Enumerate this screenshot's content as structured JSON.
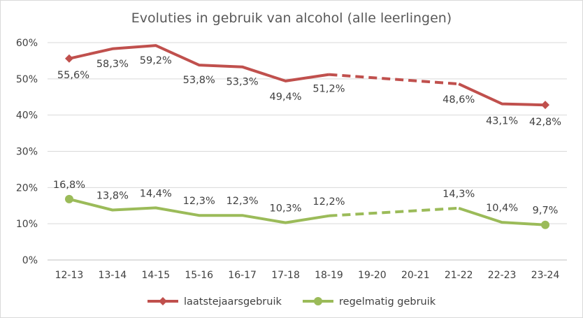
{
  "chart_data": {
    "type": "line",
    "title": "Evoluties in gebruik van alcohol (alle leerlingen)",
    "xlabel": "",
    "ylabel": "",
    "categories": [
      "12-13",
      "13-14",
      "14-15",
      "15-16",
      "16-17",
      "17-18",
      "18-19",
      "19-20",
      "20-21",
      "21-22",
      "22-23",
      "23-24"
    ],
    "ylim": [
      0,
      60
    ],
    "yticks": [
      "0%",
      "10%",
      "20%",
      "30%",
      "40%",
      "50%",
      "60%"
    ],
    "ytick_values": [
      0,
      10,
      20,
      30,
      40,
      50,
      60
    ],
    "grid": true,
    "legend_position": "bottom",
    "series": [
      {
        "name": "laatstejaarsgebruik",
        "color": "#c0504d",
        "marker": "diamond",
        "values": [
          55.6,
          58.3,
          59.2,
          53.8,
          53.3,
          49.4,
          51.2,
          null,
          null,
          48.6,
          43.1,
          42.8
        ],
        "labels": [
          "55,6%",
          "58,3%",
          "59,2%",
          "53,8%",
          "53,3%",
          "49,4%",
          "51,2%",
          "",
          "",
          "48,6%",
          "43,1%",
          "42,8%"
        ],
        "dashed_gap": [
          6,
          9
        ]
      },
      {
        "name": "regelmatig gebruik",
        "color": "#9bbb59",
        "marker": "circle",
        "values": [
          16.8,
          13.8,
          14.4,
          12.3,
          12.3,
          10.3,
          12.2,
          null,
          null,
          14.3,
          10.4,
          9.7
        ],
        "labels": [
          "16,8%",
          "13,8%",
          "14,4%",
          "12,3%",
          "12,3%",
          "10,3%",
          "12,2%",
          "",
          "",
          "14,3%",
          "10,4%",
          "9,7%"
        ],
        "dashed_gap": [
          6,
          9
        ]
      }
    ]
  }
}
